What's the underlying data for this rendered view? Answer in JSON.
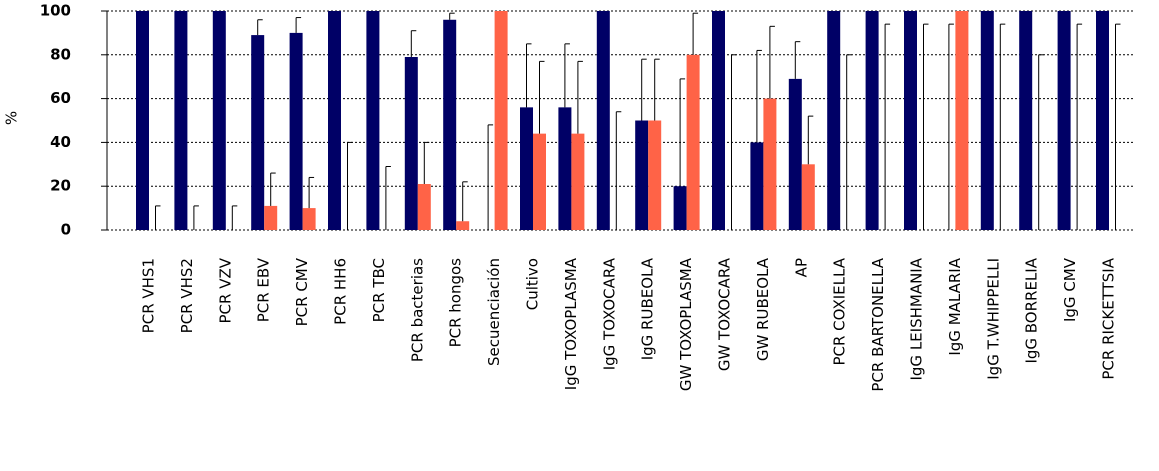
{
  "chart_data": {
    "type": "bar",
    "y_label": "%",
    "categories": [
      "PCR VHS1",
      "PCR VHS2",
      "PCR VZV",
      "PCR EBV",
      "PCR CMV",
      "PCR HH6",
      "PCR TBC",
      "PCR bacterias",
      "PCR hongos",
      "Secuenciación",
      "Cultivo",
      "IgG TOXOPLASMA",
      "IgG TOXOCARA",
      "IgG RUBEOLA",
      "GW TOXOPLASMA",
      "GW TOXOCARA",
      "GW RUBEOLA",
      "AP",
      "PCR COXIELLA",
      "PCR BARTONELLA",
      "IgG LEISHMANIA",
      "IgG MALARIA",
      "IgG T.WHIPPELLI",
      "IgG BORRELIA",
      "IgG CMV",
      "PCR RICKETTSIA"
    ],
    "series": [
      {
        "color": "#000066",
        "values": [
          100,
          100,
          100,
          89,
          90,
          100,
          100,
          79,
          96,
          0,
          56,
          56,
          100,
          50,
          20,
          100,
          40,
          69,
          100,
          100,
          100,
          0,
          100,
          100,
          100,
          100
        ],
        "errors": [
          0,
          0,
          0,
          7,
          7,
          0,
          0,
          12,
          3,
          48,
          29,
          29,
          0,
          28,
          49,
          0,
          42,
          17,
          0,
          0,
          0,
          94,
          0,
          0,
          0,
          0
        ]
      },
      {
        "color": "#ff6347",
        "values": [
          0,
          0,
          0,
          11,
          10,
          0,
          0,
          21,
          4,
          100,
          44,
          44,
          0,
          50,
          80,
          0,
          60,
          30,
          0,
          0,
          0,
          100,
          0,
          0,
          0,
          0
        ],
        "errors": [
          11,
          11,
          11,
          15,
          14,
          40,
          29,
          19,
          18,
          0,
          33,
          33,
          54,
          28,
          19,
          80,
          33,
          22,
          80,
          94,
          94,
          0,
          94,
          80,
          94,
          94
        ]
      }
    ],
    "ylim": [
      0,
      100
    ],
    "yticks": [
      0,
      20,
      40,
      60,
      80,
      100
    ],
    "grid": true
  }
}
